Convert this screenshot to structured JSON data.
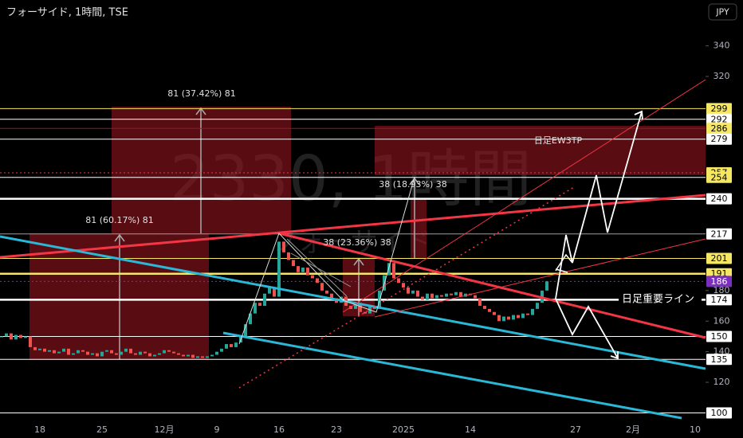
{
  "header": {
    "symbol_title": "フォーサイド, 1時間, TSE",
    "currency": "JPY"
  },
  "watermark": {
    "symbol": "2330, 1時間",
    "name": "フォーサイド"
  },
  "chart_data": {
    "type": "candlestick",
    "categories": [
      null,
      null,
      null,
      null,
      null,
      null,
      null,
      null,
      "18",
      null,
      null,
      null,
      null,
      null,
      null,
      null,
      null,
      null,
      null,
      null,
      null,
      "25",
      null,
      null,
      null,
      null,
      null,
      null,
      null,
      null,
      null,
      null,
      null,
      null,
      "12月",
      null,
      null,
      null,
      null,
      null,
      null,
      null,
      null,
      null,
      null,
      "9",
      null,
      null,
      null,
      null,
      null,
      null,
      null,
      null,
      null,
      null,
      null,
      null,
      "16",
      null,
      null,
      null,
      null,
      null,
      null,
      null,
      null,
      null,
      null,
      null,
      "23",
      null,
      null,
      null,
      null,
      null,
      null,
      null,
      null,
      null,
      null,
      null,
      null,
      null,
      "2025",
      null,
      null,
      null,
      null,
      null,
      null,
      null,
      null,
      null,
      null,
      null,
      null,
      null,
      "14",
      null,
      null,
      null,
      null,
      null,
      null,
      null,
      null,
      null,
      null,
      null,
      null,
      null,
      null,
      null,
      null,
      null,
      null,
      null,
      null,
      null,
      "27",
      null,
      null,
      null,
      null,
      null,
      null,
      null,
      null,
      null,
      null,
      null,
      "2月",
      null,
      null,
      null,
      null,
      null,
      null,
      null,
      null,
      null,
      null,
      null,
      null,
      "10"
    ],
    "closes": [
      150,
      152,
      148,
      151,
      149,
      150,
      143,
      141,
      142,
      140,
      141,
      139,
      140,
      142,
      138,
      139,
      141,
      140,
      138,
      139,
      137,
      140,
      141,
      139,
      138,
      140,
      142,
      139,
      138,
      140,
      139,
      137,
      138,
      139,
      141,
      140,
      139,
      138,
      137,
      138,
      136,
      137,
      136,
      137,
      138,
      140,
      142,
      145,
      143,
      146,
      150,
      158,
      165,
      172,
      170,
      178,
      182,
      176,
      212,
      205,
      200,
      196,
      192,
      195,
      190,
      188,
      185,
      180,
      178,
      175,
      172,
      176,
      170,
      168,
      172,
      166,
      165,
      170,
      168,
      180,
      190,
      198,
      188,
      185,
      182,
      178,
      180,
      176,
      174,
      178,
      175,
      177,
      176,
      178,
      177,
      179,
      176,
      178,
      177,
      175,
      170,
      168,
      166,
      164,
      160,
      163,
      161,
      164,
      162,
      165,
      164,
      168,
      172,
      180,
      186,
      null,
      null,
      null,
      null,
      null,
      null,
      null,
      null,
      null,
      null,
      null,
      null,
      null,
      null,
      null,
      null,
      null,
      null,
      null,
      null,
      null,
      null,
      null,
      null,
      null,
      null,
      null,
      null,
      null,
      null,
      null
    ],
    "up_color": "#26a69a",
    "down_color": "#ef5350",
    "ylim": [
      94,
      370
    ],
    "yticks": [
      340,
      320,
      180,
      160,
      140,
      120
    ],
    "levels": [
      {
        "value": 299,
        "label_bg": "#f5e663",
        "line_color": "#f5e663",
        "style": "thin"
      },
      {
        "value": 292,
        "label_bg": "#ffffff",
        "line_color": "#ffffff",
        "style": "thin"
      },
      {
        "value": 286,
        "label_bg": "#f5e663",
        "line_color": "#8a1c2a",
        "style": "thin"
      },
      {
        "value": 279,
        "label_bg": "#ffffff",
        "line_color": "#ffffff",
        "style": "thin"
      },
      {
        "value": 257,
        "label_bg": "#f5e663",
        "line_color": "#e03b4c",
        "style": "dotted"
      },
      {
        "value": 254,
        "label_bg": "#f5e663",
        "line_color": "#ffffff",
        "style": "thin"
      },
      {
        "value": 240,
        "label_bg": "#ffffff",
        "line_color": "#ffffff",
        "style": "thick"
      },
      {
        "value": 217,
        "label_bg": "#ffffff",
        "line_color": "#9e9e9e",
        "style": "thin"
      },
      {
        "value": 201,
        "label_bg": "#f5e663",
        "line_color": "#f5e663",
        "style": "thin"
      },
      {
        "value": 191,
        "label_bg": "#f5e663",
        "line_color": "#f5e663",
        "style": "thick"
      },
      {
        "value": 186,
        "label_bg": "#7b2fbe",
        "line_color": "#7b2fbe",
        "style": "dotted"
      },
      {
        "value": 174,
        "label_bg": "#ffffff",
        "line_color": "#ffffff",
        "style": "thick"
      },
      {
        "value": 150,
        "label_bg": "#ffffff",
        "line_color": "#ffffff",
        "style": "thin"
      },
      {
        "value": 135,
        "label_bg": "#ffffff",
        "line_color": "#ffffff",
        "style": "thin"
      },
      {
        "value": 100,
        "label_bg": "#ffffff",
        "line_color": "#ffffff",
        "style": "thin"
      }
    ],
    "annotations": [
      "81 (37.42%) 81",
      "81 (60.17%) 81",
      "38 (18.93%) 38",
      "38 (23.36%) 38",
      "日足EW3TP"
    ],
    "level_note": "日足重要ライン"
  }
}
